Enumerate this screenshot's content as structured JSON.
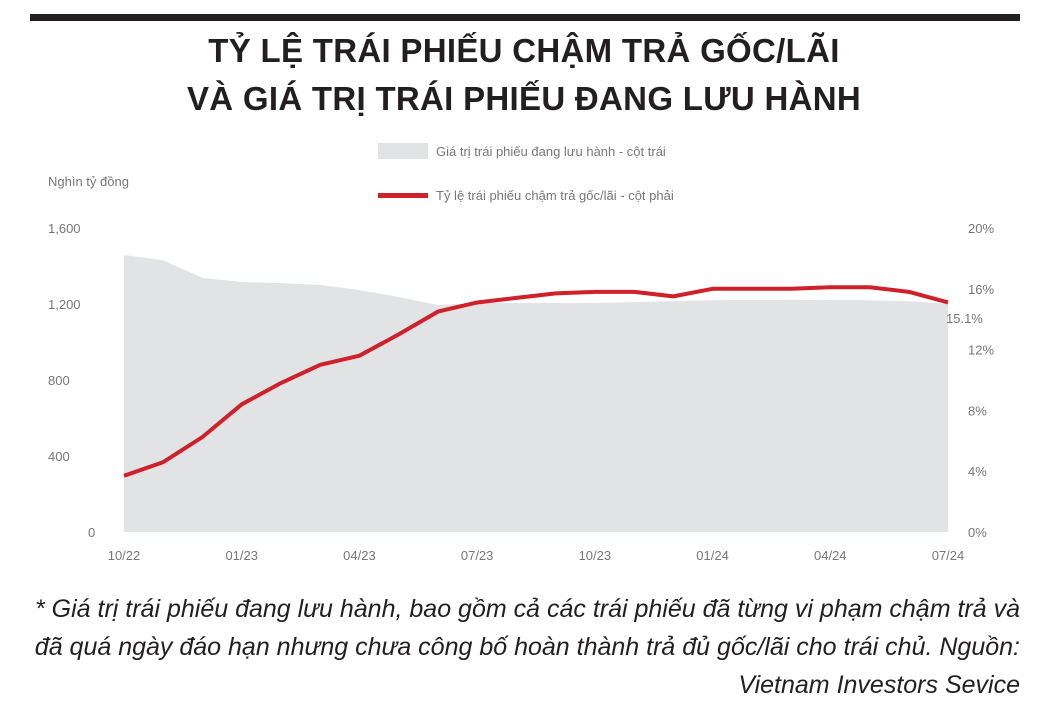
{
  "title_line1": "TỶ LỆ TRÁI PHIẾU CHẬM TRẢ GỐC/LÃI",
  "title_line2": "VÀ GIÁ TRỊ TRÁI PHIẾU ĐANG LƯU HÀNH",
  "footnote": "* Giá trị trái phiếu đang lưu hành, bao gồm cả các trái phiếu đã từng vi phạm chậm trả và đã quá ngày đáo hạn nhưng chưa công bố hoàn thành trả đủ gốc/lãi cho trái chủ. Nguồn: Vietnam Investors Sevice",
  "chart_data": {
    "type": "area+line",
    "ylabel": "Nghìn tỷ đồng",
    "ylim": [
      0,
      1600
    ],
    "y2lim": [
      0,
      20
    ],
    "yticks": [
      "0",
      "400",
      "800",
      "1,200",
      "1,600"
    ],
    "y2ticks": [
      "0%",
      "4%",
      "8%",
      "12%",
      "16%",
      "20%"
    ],
    "xticks": [
      "10/22",
      "01/23",
      "04/23",
      "07/23",
      "10/23",
      "01/24",
      "04/24",
      "07/24"
    ],
    "x": [
      "10/22",
      "11/22",
      "12/22",
      "01/23",
      "02/23",
      "03/23",
      "04/23",
      "05/23",
      "06/23",
      "07/23",
      "08/23",
      "09/23",
      "10/23",
      "11/23",
      "12/23",
      "01/24",
      "02/24",
      "03/24",
      "04/24",
      "05/24",
      "06/24",
      "07/24"
    ],
    "legend_position": "top",
    "series": [
      {
        "name": "Giá trị trái phiếu đang lưu hành - cột trái",
        "axis": "left",
        "type": "area",
        "color": "#e1e3e5",
        "values": [
          1458,
          1430,
          1337,
          1316,
          1310,
          1300,
          1274,
          1237,
          1195,
          1205,
          1205,
          1205,
          1205,
          1210,
          1215,
          1220,
          1222,
          1222,
          1222,
          1220,
          1215,
          1200
        ]
      },
      {
        "name": "Tỷ lệ trái phiếu chậm trả gốc/lãi - cột phải",
        "axis": "right",
        "type": "line",
        "color": "#d0202a",
        "values": [
          3.7,
          4.6,
          6.25,
          8.4,
          9.8,
          11.0,
          11.6,
          13.0,
          14.5,
          15.1,
          15.4,
          15.7,
          15.8,
          15.8,
          15.5,
          16.0,
          16.0,
          16.0,
          16.1,
          16.1,
          15.8,
          15.1
        ]
      }
    ],
    "annotations": [
      "15.1%"
    ],
    "grid": false
  }
}
